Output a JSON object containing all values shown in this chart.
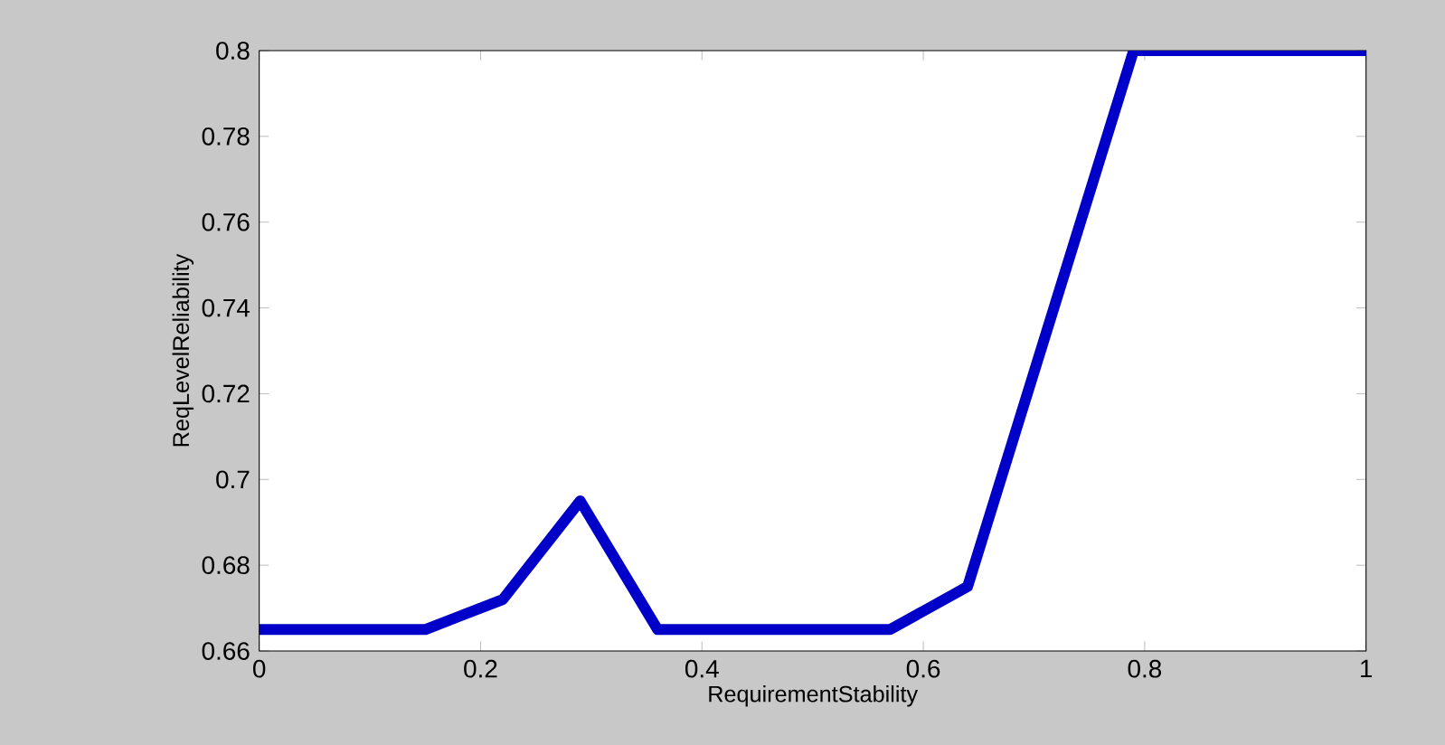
{
  "chart_data": {
    "type": "line",
    "xlabel": "RequirementStability",
    "ylabel": "ReqLevelReliability",
    "x": [
      0,
      0.15,
      0.22,
      0.29,
      0.36,
      0.57,
      0.64,
      0.79,
      1
    ],
    "values": [
      0.665,
      0.665,
      0.672,
      0.695,
      0.665,
      0.665,
      0.675,
      0.8,
      0.8
    ],
    "color": "#0000c8",
    "line_style": "solid",
    "xlim": [
      0,
      1
    ],
    "ylim": [
      0.66,
      0.8
    ],
    "xticks": [
      0,
      0.2,
      0.4,
      0.6,
      0.8,
      1
    ],
    "yticks": [
      0.66,
      0.68,
      0.7,
      0.72,
      0.74,
      0.76,
      0.78,
      0.8
    ]
  }
}
